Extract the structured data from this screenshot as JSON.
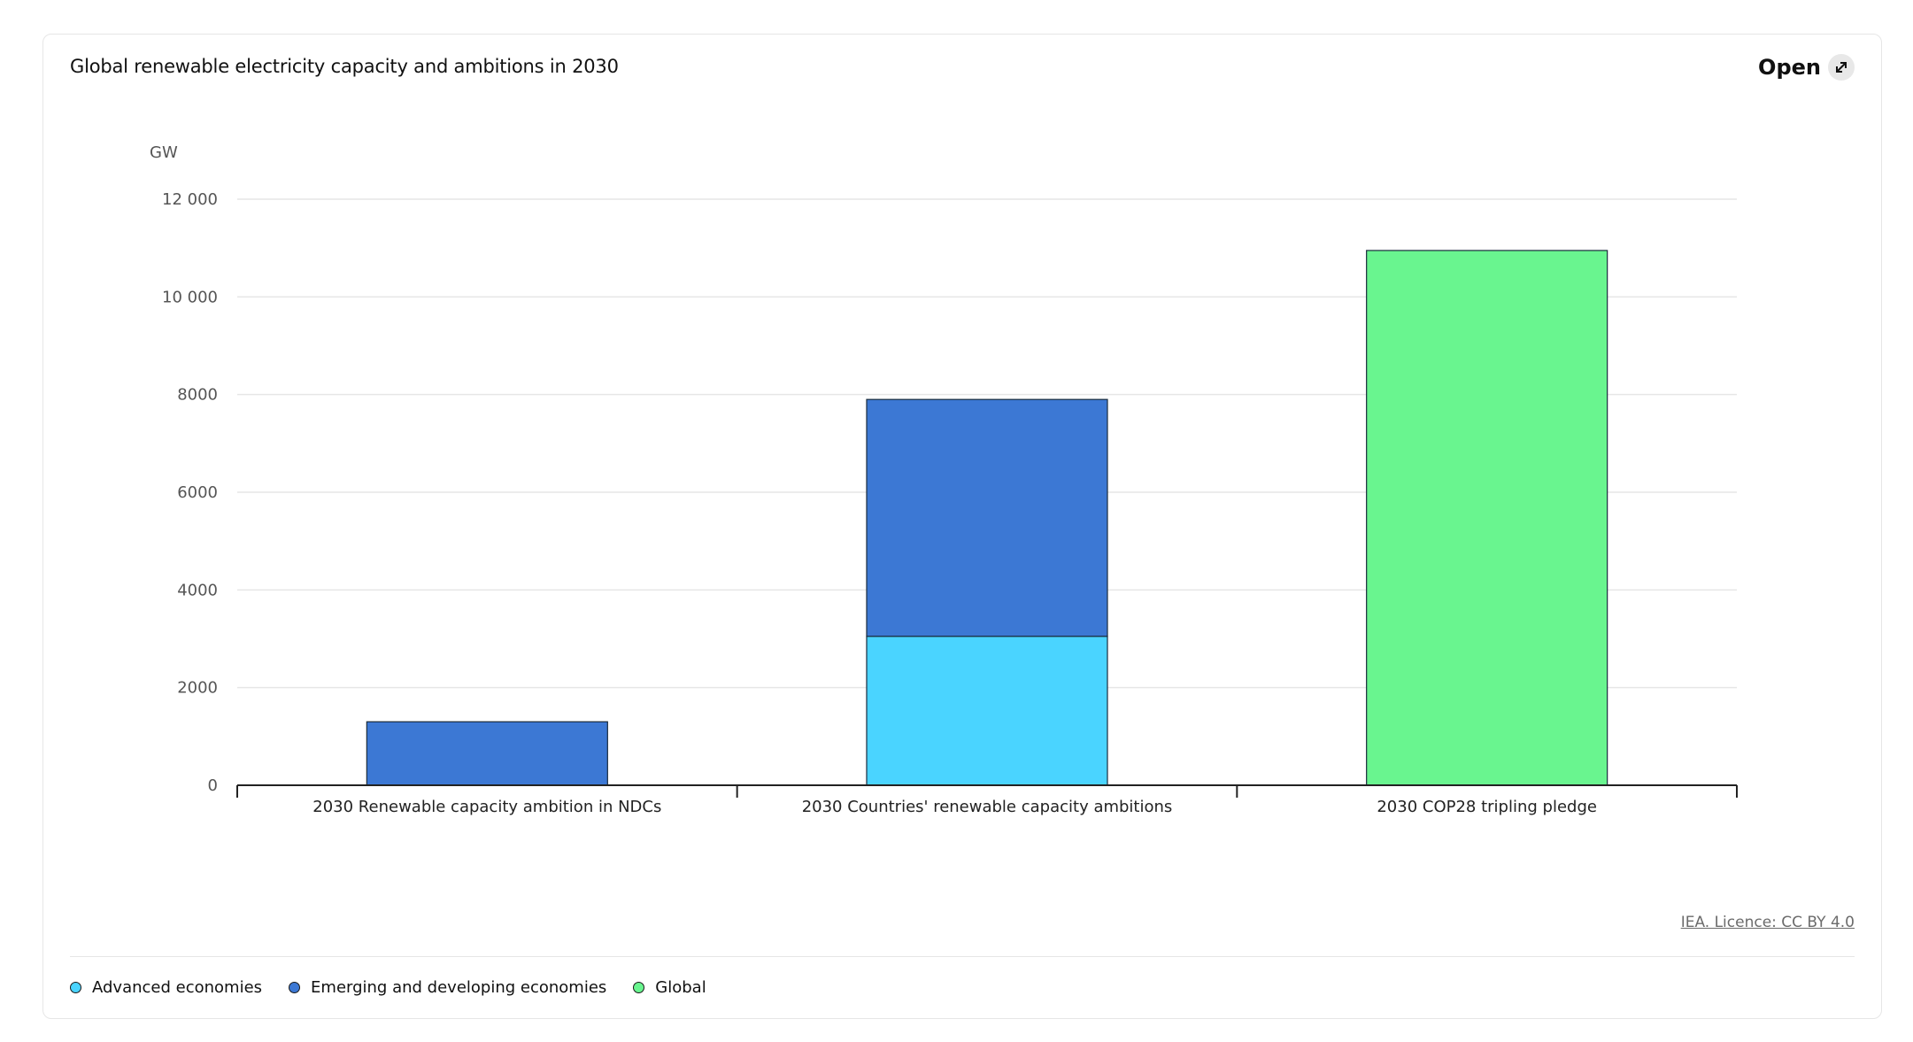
{
  "card": {
    "title": "Global renewable electricity capacity and ambitions in 2030",
    "open_label": "Open",
    "open_icon": "expand-arrow-icon",
    "licence": "IEA. Licence: CC BY 4.0"
  },
  "legend": [
    {
      "label": "Advanced economies",
      "color": "#4ad4ff"
    },
    {
      "label": "Emerging and developing economies",
      "color": "#3c78d4"
    },
    {
      "label": "Global",
      "color": "#69f58f"
    }
  ],
  "chart_data": {
    "type": "bar",
    "stacked": true,
    "title": "Global renewable electricity capacity and ambitions in 2030",
    "ylabel": "GW",
    "xlabel": "",
    "ylim": [
      0,
      12000
    ],
    "yticks": [
      0,
      2000,
      4000,
      6000,
      8000,
      10000,
      12000
    ],
    "ytick_labels": [
      "0",
      "2000",
      "4000",
      "6000",
      "8000",
      "10 000",
      "12 000"
    ],
    "grid": true,
    "legend_position": "bottom-left",
    "categories": [
      "2030 Renewable capacity ambition in NDCs",
      "2030 Countries' renewable capacity ambitions",
      "2030 COP28 tripling pledge"
    ],
    "series": [
      {
        "name": "Advanced economies",
        "color": "#4ad4ff",
        "values": [
          0,
          3050,
          0
        ]
      },
      {
        "name": "Emerging and developing economies",
        "color": "#3c78d4",
        "values": [
          1300,
          4850,
          0
        ]
      },
      {
        "name": "Global",
        "color": "#69f58f",
        "values": [
          0,
          0,
          10950
        ]
      }
    ]
  }
}
